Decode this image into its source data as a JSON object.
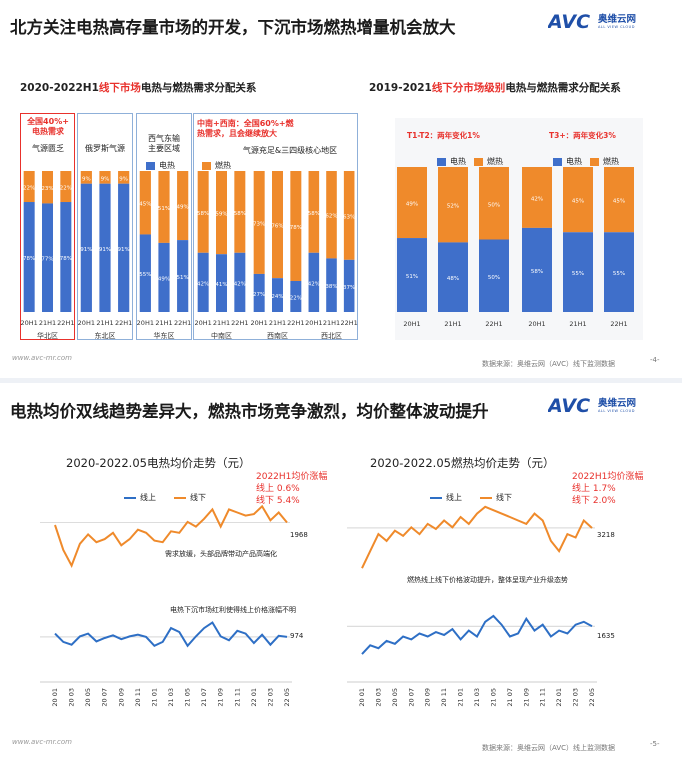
{
  "slide1": {
    "title": "北方关注电热高存量市场的开发，下沉市场燃热增量机会放大",
    "logo_text": "奥维云网",
    "logo_sub": "ALL VIEW CLOUD",
    "left_chart": {
      "title_prefix": "2020-2022H1",
      "title_highlight": "线下市场",
      "title_suffix": "电热与燃热需求分配关系",
      "box_labels": [
        {
          "text": "全国40%+\n电热需求",
          "red": true
        },
        {
          "text": "气源匮乏",
          "red": false
        },
        {
          "text": "俄罗斯气源",
          "red": false
        },
        {
          "text": "西气东输\n主要区域",
          "red": false
        },
        {
          "text": "中南+西南：全国60%+燃\n热需求，且会继续放大",
          "red": true
        },
        {
          "text": "气源充足&三四级核心地区",
          "red": false
        }
      ],
      "legend": [
        {
          "name": "电热",
          "color": "#3f6fca"
        },
        {
          "name": "燃热",
          "color": "#ef8a2b"
        }
      ],
      "regions": [
        "华北区",
        "东北区",
        "华东区",
        "中南区",
        "西南区",
        "西北区"
      ],
      "categories": [
        "20H1",
        "21H1",
        "22H1"
      ]
    },
    "right_chart": {
      "title_prefix": "2019-2021",
      "title_highlight": "线下分市场级别",
      "title_suffix": "电热与燃热需求分配关系",
      "groups": [
        {
          "label": "T1-T2：两年变化1%"
        },
        {
          "label": "T3+：两年变化3%"
        }
      ],
      "legend": [
        {
          "name": "电热",
          "color": "#3f6fca"
        },
        {
          "name": "燃热",
          "color": "#ef8a2b"
        }
      ],
      "categories": [
        "20H1",
        "21H1",
        "22H1"
      ]
    },
    "footer_url": "www.avc-mr.com",
    "source": "数据来源：奥维云网（AVC）线下监测数据",
    "page": "-4-"
  },
  "slide2": {
    "title": "电热均价双线趋势差异大，燃热市场竞争激烈，均价整体波动提升",
    "logo_text": "奥维云网",
    "logo_sub": "ALL VIEW CLOUD",
    "left_title": "2020-2022.05电热均价走势（元）",
    "right_title": "2020-2022.05燃热均价走势（元）",
    "left_note_red": "2022H1均价涨幅\n线上 0.6%\n线下 5.4%",
    "right_note_red": "2022H1均价涨幅\n线上 1.7%\n线下 2.0%",
    "left_note_offline": "需求放缓，头部品牌带动产品高端化",
    "left_note_online": "电热下沉市场红利使得线上价格涨幅不明",
    "right_note": "燃热线上线下价格波动提升，整体呈现产业升级态势",
    "legend": [
      {
        "name": "线上",
        "color": "#2e6fc5"
      },
      {
        "name": "线下",
        "color": "#ef8a2b"
      }
    ],
    "left_offline_value": "1968",
    "left_online_value": "974",
    "right_offline_value": "3218",
    "right_online_value": "1635",
    "footer_url": "www.avc-mr.com",
    "source": "数据来源：奥维云网（AVC）线上监测数据",
    "page": "-5-"
  },
  "chart_data": [
    {
      "type": "bar",
      "stacked": true,
      "title": "2020-2022H1线下市场电热与燃热需求分配关系",
      "categories": [
        "华北区 20H1",
        "华北区 21H1",
        "华北区 22H1",
        "东北区 20H1",
        "东北区 21H1",
        "东北区 22H1",
        "华东区 20H1",
        "华东区 21H1",
        "华东区 22H1",
        "中南区 20H1",
        "中南区 21H1",
        "中南区 22H1",
        "西南区 20H1",
        "西南区 21H1",
        "西南区 22H1",
        "西北区 20H1",
        "西北区 21H1",
        "西北区 22H1"
      ],
      "series": [
        {
          "name": "电热",
          "values": [
            78,
            77,
            78,
            91,
            91,
            91,
            55,
            49,
            51,
            42,
            41,
            42,
            27,
            24,
            22,
            42,
            38,
            37
          ]
        },
        {
          "name": "燃热",
          "values": [
            22,
            23,
            22,
            9,
            9,
            9,
            45,
            51,
            49,
            58,
            59,
            58,
            73,
            76,
            78,
            58,
            62,
            63
          ]
        }
      ],
      "ylim": [
        0,
        100
      ]
    },
    {
      "type": "bar",
      "stacked": true,
      "title": "2019-2021线下分市场级别电热与燃热需求分配关系",
      "categories": [
        "T1-T2 20H1",
        "T1-T2 21H1",
        "T1-T2 22H1",
        "T3+ 20H1",
        "T3+ 21H1",
        "T3+ 22H1"
      ],
      "series": [
        {
          "name": "电热",
          "values": [
            51,
            48,
            50,
            58,
            55,
            55
          ]
        },
        {
          "name": "燃热",
          "values": [
            49,
            52,
            50,
            42,
            45,
            45
          ]
        }
      ],
      "ylim": [
        0,
        100
      ]
    },
    {
      "type": "line",
      "title": "2020-2022.05电热均价走势（元）",
      "x": [
        "20 01",
        "20 02",
        "20 03",
        "20 04",
        "20 05",
        "20 06",
        "20 07",
        "20 08",
        "20 09",
        "20 10",
        "20 11",
        "20 12",
        "21 01",
        "21 02",
        "21 03",
        "21 04",
        "21 05",
        "21 06",
        "21 07",
        "21 08",
        "21 09",
        "21 10",
        "21 11",
        "21 12",
        "22 01",
        "22 02",
        "22 03",
        "22 04",
        "22 05"
      ],
      "series": [
        {
          "name": "线下",
          "values": [
            1960,
            1880,
            1830,
            1900,
            1930,
            1905,
            1915,
            1935,
            1895,
            1915,
            1945,
            1935,
            1910,
            1905,
            1940,
            1935,
            1970,
            1955,
            1980,
            2010,
            1955,
            2010,
            2000,
            1990,
            1995,
            2020,
            1975,
            2000,
            1968
          ]
        },
        {
          "name": "线上",
          "values": [
            980,
            965,
            960,
            975,
            980,
            966,
            972,
            977,
            970,
            975,
            978,
            974,
            958,
            965,
            990,
            983,
            958,
            975,
            990,
            1000,
            975,
            968,
            985,
            980,
            963,
            978,
            960,
            976,
            974
          ]
        }
      ]
    },
    {
      "type": "line",
      "title": "2020-2022.05燃热均价走势（元）",
      "x": [
        "20 01",
        "20 02",
        "20 03",
        "20 04",
        "20 05",
        "20 06",
        "20 07",
        "20 08",
        "20 09",
        "20 10",
        "20 11",
        "20 12",
        "21 01",
        "21 02",
        "21 03",
        "21 04",
        "21 05",
        "21 06",
        "21 07",
        "21 08",
        "21 09",
        "21 10",
        "21 11",
        "21 12",
        "22 01",
        "22 02",
        "22 03",
        "22 04",
        "22 05"
      ],
      "series": [
        {
          "name": "线下",
          "values": [
            3100,
            3150,
            3200,
            3180,
            3210,
            3195,
            3220,
            3200,
            3230,
            3215,
            3240,
            3220,
            3250,
            3230,
            3260,
            3280,
            3270,
            3260,
            3250,
            3240,
            3230,
            3260,
            3240,
            3180,
            3150,
            3200,
            3190,
            3240,
            3218
          ]
        },
        {
          "name": "线上",
          "values": [
            1540,
            1570,
            1560,
            1585,
            1575,
            1600,
            1590,
            1610,
            1600,
            1615,
            1605,
            1625,
            1590,
            1620,
            1600,
            1650,
            1670,
            1640,
            1600,
            1610,
            1660,
            1620,
            1640,
            1600,
            1620,
            1610,
            1640,
            1650,
            1635
          ]
        }
      ]
    }
  ]
}
